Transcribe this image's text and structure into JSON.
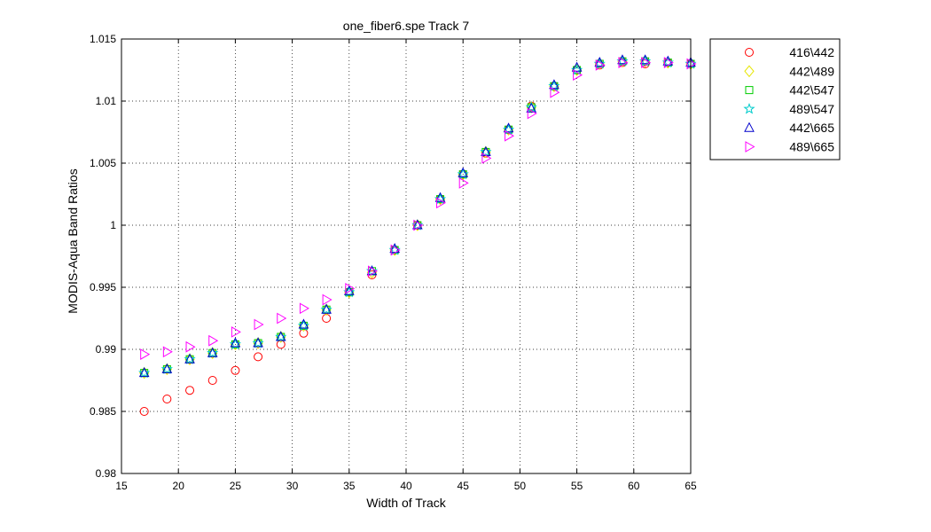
{
  "chart_data": {
    "type": "scatter",
    "title": "one_fiber6.spe   Track 7",
    "xlabel": "Width of Track",
    "ylabel": "MODIS-Aqua Band Ratios",
    "xlim": [
      15,
      65
    ],
    "ylim": [
      0.98,
      1.015
    ],
    "xticks": [
      15,
      20,
      25,
      30,
      35,
      40,
      45,
      50,
      55,
      60,
      65
    ],
    "xtick_labels": [
      "15",
      "20",
      "25",
      "30",
      "35",
      "40",
      "45",
      "50",
      "55",
      "60",
      "65"
    ],
    "yticks": [
      0.98,
      0.985,
      0.99,
      0.995,
      1.0,
      1.005,
      1.01,
      1.015
    ],
    "ytick_labels": [
      "0.98",
      "0.985",
      "0.99",
      "0.995",
      "1",
      "1.005",
      "1.01",
      "1.015"
    ],
    "grid": true,
    "legend_position": "outside-top-right",
    "x": [
      17,
      19,
      21,
      23,
      25,
      27,
      29,
      31,
      33,
      35,
      37,
      39,
      41,
      43,
      45,
      47,
      49,
      51,
      53,
      55,
      57,
      59,
      61,
      63,
      65
    ],
    "series": [
      {
        "name": "416\\442",
        "marker": "circle",
        "color": "#ff0000",
        "values": [
          0.985,
          0.986,
          0.9867,
          0.9875,
          0.9883,
          0.9894,
          0.9904,
          0.9913,
          0.9925,
          0.9946,
          0.996,
          0.998,
          1.0,
          1.0021,
          1.0041,
          1.0058,
          1.0077,
          1.0096,
          1.0112,
          1.0125,
          1.0129,
          1.0131,
          1.013,
          1.0131,
          1.013
        ]
      },
      {
        "name": "442\\489",
        "marker": "diamond",
        "color": "#e6e600",
        "values": [
          0.9881,
          0.9884,
          0.9892,
          0.9897,
          0.9904,
          0.9905,
          0.991,
          0.9919,
          0.9932,
          0.9946,
          0.9962,
          0.998,
          1.0,
          1.0021,
          1.0041,
          1.0059,
          1.0077,
          1.0095,
          1.0112,
          1.0125,
          1.013,
          1.0132,
          1.0132,
          1.0131,
          1.013
        ]
      },
      {
        "name": "442\\547",
        "marker": "square",
        "color": "#00cc00",
        "values": [
          0.9881,
          0.9884,
          0.9892,
          0.9897,
          0.9904,
          0.9905,
          0.991,
          0.9919,
          0.9932,
          0.9946,
          0.9963,
          0.998,
          1.0,
          1.0021,
          1.0041,
          1.0059,
          1.0077,
          1.0095,
          1.0112,
          1.0125,
          1.013,
          1.0132,
          1.0132,
          1.0131,
          1.013
        ]
      },
      {
        "name": "489\\547",
        "marker": "star",
        "color": "#00cccc",
        "values": [
          0.9881,
          0.9884,
          0.9892,
          0.9897,
          0.9904,
          0.9905,
          0.991,
          0.9919,
          0.9932,
          0.9946,
          0.9963,
          0.998,
          1.0,
          1.0021,
          1.0041,
          1.0059,
          1.0077,
          1.0095,
          1.0112,
          1.0125,
          1.013,
          1.0132,
          1.0132,
          1.0131,
          1.013
        ]
      },
      {
        "name": "442\\665",
        "marker": "triangle-up",
        "color": "#0000cc",
        "values": [
          0.9881,
          0.9884,
          0.9892,
          0.9897,
          0.9905,
          0.9905,
          0.991,
          0.992,
          0.9932,
          0.9947,
          0.9963,
          0.9981,
          1.0,
          1.0022,
          1.0042,
          1.0059,
          1.0078,
          1.0094,
          1.0113,
          1.0127,
          1.0131,
          1.0133,
          1.0133,
          1.0132,
          1.0131
        ]
      },
      {
        "name": "489\\665",
        "marker": "triangle-right",
        "color": "#ff00ff",
        "values": [
          0.9896,
          0.9898,
          0.9902,
          0.9907,
          0.9914,
          0.992,
          0.9925,
          0.9933,
          0.994,
          0.9949,
          0.9963,
          0.998,
          1.0,
          1.0018,
          1.0034,
          1.0054,
          1.0072,
          1.009,
          1.0107,
          1.0121,
          1.0129,
          1.0131,
          1.0131,
          1.0131,
          1.013
        ]
      }
    ]
  }
}
